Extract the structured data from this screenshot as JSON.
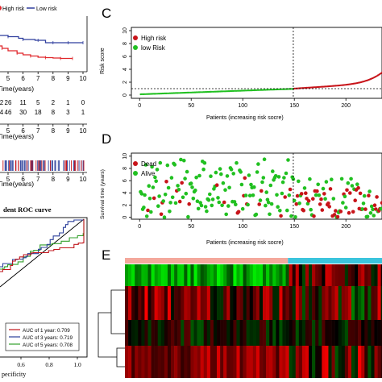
{
  "panel_letters": {
    "c": "C",
    "d": "D",
    "e": "E"
  },
  "chart_data": [
    {
      "id": "km",
      "type": "line",
      "legend_visible": [
        "High risk",
        "Low risk"
      ],
      "xlabel": "Time(years)",
      "ticks": [
        "5",
        "6",
        "7",
        "8",
        "9",
        "10"
      ],
      "series": [
        {
          "name": "High risk",
          "color": "#e0262a",
          "x": [
            0,
            1,
            2,
            3,
            4,
            4.6,
            5,
            5.6,
            6,
            6.5,
            7,
            7.5,
            8,
            8.5,
            9,
            9.3
          ],
          "y": [
            1,
            0.9,
            0.8,
            0.72,
            0.64,
            0.58,
            0.52,
            0.46,
            0.42,
            0.39,
            0.36,
            0.35,
            0.34,
            0.33,
            0.33,
            0.33
          ]
        },
        {
          "name": "Low risk",
          "color": "#2f3e9e",
          "x": [
            0,
            1,
            2,
            3,
            4,
            5,
            5.7,
            6,
            6.8,
            7,
            7.5,
            8,
            8.5,
            9,
            9.5,
            10
          ],
          "y": [
            1,
            0.97,
            0.94,
            0.92,
            0.9,
            0.87,
            0.83,
            0.8,
            0.78,
            0.78,
            0.72,
            0.72,
            0.72,
            0.72,
            0.72,
            0.72
          ]
        }
      ]
    },
    {
      "id": "risk-table",
      "type": "table",
      "xlabel": "Time(years)",
      "ticks": [
        "5",
        "6",
        "7",
        "8",
        "9",
        "10"
      ],
      "rows": [
        [
          "2",
          "26",
          "11",
          "5",
          "2",
          "1",
          "0"
        ],
        [
          "4",
          "46",
          "30",
          "18",
          "8",
          "3",
          "1"
        ]
      ]
    },
    {
      "id": "censor",
      "type": "scatter",
      "xlabel": "Time(years)",
      "ticks": [
        "5",
        "6",
        "7",
        "8",
        "9",
        "10"
      ]
    },
    {
      "id": "roc",
      "type": "line",
      "title": "dent ROC curve",
      "xlabel": "pecificity",
      "ticks": [
        "0.6",
        "0.8",
        "1.0"
      ],
      "legend": [
        "AUC of 1 year: 0.709",
        "AUC of 3 years: 0.719",
        "AUC of 5 years: 0.708"
      ],
      "series": [
        {
          "name": "AUC of 1 year: 0.709",
          "color": "#c0161c"
        },
        {
          "name": "AUC of 3 years: 0.719",
          "color": "#2b3f9a"
        },
        {
          "name": "AUC of 5 years: 0.708",
          "color": "#33a02c"
        }
      ]
    },
    {
      "id": "risk-score",
      "type": "scatter",
      "ylabel": "Risk score",
      "xlabel": "Patients (increasing risk socre)",
      "xticks": [
        "0",
        "50",
        "100",
        "150",
        "200"
      ],
      "yticks": [
        "0",
        "2",
        "4",
        "6",
        "8",
        "10"
      ],
      "xlim": [
        -8,
        235
      ],
      "ylim": [
        -0.5,
        10.5
      ],
      "cutoff_x": 149,
      "cutoff_y": 1,
      "legend": [
        "High risk",
        "low Risk"
      ],
      "colors": {
        "high": "#c8141a",
        "low": "#21c021"
      },
      "n_patients": 235
    },
    {
      "id": "survival",
      "type": "scatter",
      "ylabel": "Survival time (years)",
      "xlabel": "Patients (increasing risk socre)",
      "xticks": [
        "0",
        "50",
        "100",
        "150",
        "200"
      ],
      "yticks": [
        "0",
        "2",
        "4",
        "6",
        "8",
        "10"
      ],
      "xlim": [
        -8,
        235
      ],
      "ylim": [
        -0.3,
        10.5
      ],
      "cutoff_x": 149,
      "legend": [
        "Dead",
        "Alive"
      ],
      "colors": {
        "dead": "#c8141a",
        "alive": "#21c021"
      }
    },
    {
      "id": "heatmap",
      "type": "heatmap",
      "group_colors": {
        "low": "#f4a89c",
        "high": "#3bc4dc"
      },
      "group_split_patient": 149,
      "n_patients": 235,
      "n_genes": 4,
      "colors": {
        "down": "#00ff00",
        "up": "#ff0000",
        "mid": "#000000"
      }
    }
  ]
}
